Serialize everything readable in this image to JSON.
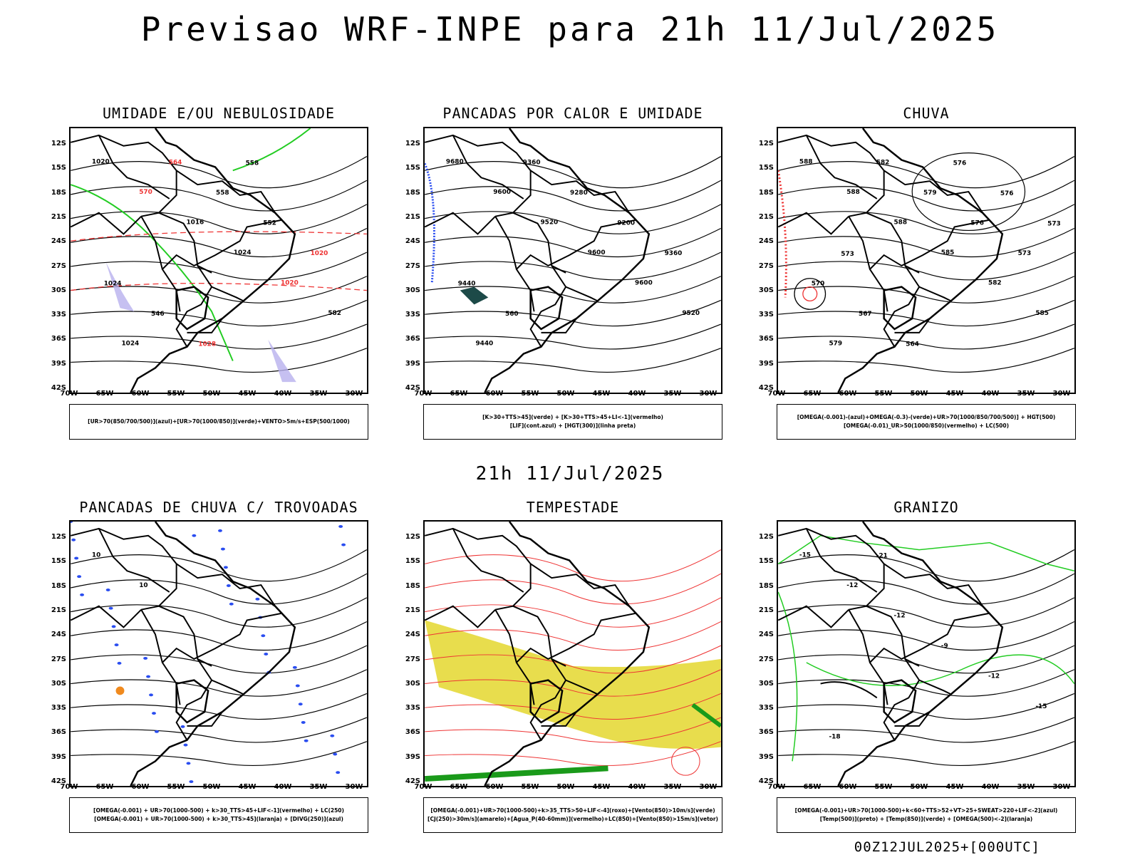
{
  "header": {
    "main_title": "Previsao WRF-INPE  para 21h 11/Jul/2025",
    "subtitle": "21h 11/Jul/2025",
    "footer_code": "00Z12JUL2025+[000UTC]"
  },
  "axes": {
    "lat_ticks": [
      "12S",
      "15S",
      "18S",
      "21S",
      "24S",
      "27S",
      "30S",
      "33S",
      "36S",
      "39S",
      "42S"
    ],
    "lon_ticks": [
      "70W",
      "65W",
      "60W",
      "55W",
      "50W",
      "45W",
      "40W",
      "35W",
      "30W"
    ]
  },
  "panels": [
    {
      "title": "UMIDADE E/OU NEBULOSIDADE",
      "legend": [
        "[UR>70(850/700/500)](azul)+[UR>70(1000/850)](verde)+VENTO>5m/s+ESP(500/1000)"
      ],
      "contour_labels": [
        "1020",
        "570",
        "1016",
        "1024",
        "1020",
        "582",
        "1024",
        "564",
        "558",
        "552",
        "1020",
        "1024",
        "546",
        "1028",
        "558"
      ]
    },
    {
      "title": "PANCADAS POR CALOR E UMIDADE",
      "legend": [
        "[K>30+TTS>45](verde) + [K>30+TTS>45+LI<-1](vermelho)",
        "[LIF](cont.azul) + [HGT(300)](linha preta)"
      ],
      "contour_labels": [
        "9680",
        "9600",
        "9520",
        "9600",
        "9600",
        "9520",
        "9440",
        "9360",
        "9280",
        "9200",
        "9360",
        "9440",
        "560"
      ]
    },
    {
      "title": "CHUVA",
      "legend": [
        "[OMEGA(-0.001)-(azul)+OMEGA(-0.3)-(verde)+UR>70(1000/850/700/500)] + HGT(500)",
        "[OMEGA(-0.01)_UR>50(1000/850)(vermelho) + LC(500)"
      ],
      "contour_labels": [
        "588",
        "588",
        "588",
        "585",
        "582",
        "585",
        "579",
        "582",
        "579",
        "576",
        "573",
        "570",
        "567",
        "564",
        "576",
        "576",
        "573",
        "573"
      ]
    },
    {
      "title": "PANCADAS DE CHUVA C/ TROVOADAS",
      "legend": [
        "[OMEGA(-0.001) + UR>70(1000-500) + k>30_TTS>45+LIF<-1](vermelho) + LC(250)",
        "[OMEGA(-0.001) + UR>70(1000-500) + k>30_TTS>45](laranja) + [DIVG(250)](azul)"
      ],
      "contour_labels": [
        "10",
        "10"
      ]
    },
    {
      "title": "TEMPESTADE",
      "legend": [
        "[OMEGA(-0.001)+UR>70(1000-500)+k>35_TTS>50+LIF<-4](roxo)+[Vento(850)>10m/s](verde)",
        "[CJ(250)>30m/s](amarelo)+[Agua_P(40-60mm)](vermelho)+LC(850)+[Vento(850)>15m/s](vetor)"
      ],
      "contour_labels": []
    },
    {
      "title": "GRANIZO",
      "legend": [
        "[OMEGA(-0.001)+UR>70(1000-500)+k<60+TTS>52+VT>25+SWEAT>220+LIF<-2](azul)",
        "[Temp(500)](preto) + [Temp(850)](verde) + [OMEGA(500)<-2](laranja)"
      ],
      "contour_labels": [
        "-15",
        "-12",
        "-12",
        "-9",
        "-12",
        "-15",
        "-18",
        "-21"
      ]
    }
  ],
  "colors": {
    "blue": "#2a4df0",
    "green": "#22cc22",
    "red": "#ee3333",
    "yellow": "#e6d93a",
    "orange": "#f08a1e",
    "lavender": "#b8b0ee",
    "darkteal": "#1d4a48"
  }
}
